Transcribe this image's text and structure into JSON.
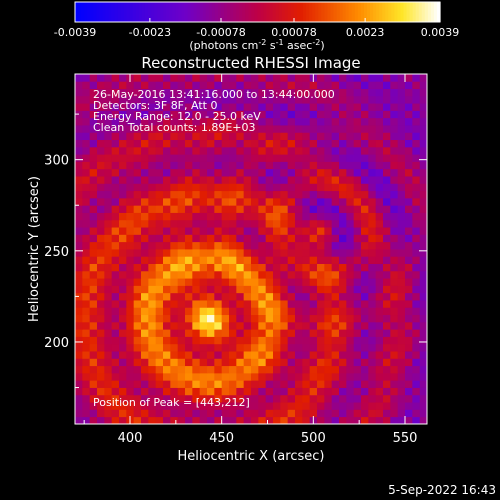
{
  "chart_data": {
    "type": "heatmap",
    "title": "Reconstructed RHESSI Image",
    "xlabel": "Heliocentric X (arcsec)",
    "ylabel": "Heliocentric Y (arcsec)",
    "xlim": [
      370,
      562
    ],
    "ylim": [
      155,
      347
    ],
    "x_ticks": [
      400,
      450,
      500,
      550
    ],
    "y_ticks": [
      200,
      250,
      300
    ],
    "colorbar": {
      "min": -0.0039,
      "max": 0.0039,
      "tick_values": [
        -0.0039,
        -0.0023,
        -0.00078,
        0.00078,
        0.0023,
        0.0039
      ],
      "tick_labels": [
        "-0.0039",
        "-0.0023",
        "-0.00078",
        "0.00078",
        "0.0023",
        "0.0039"
      ],
      "unit_label": "(photons cm",
      "unit_sup1": "-2",
      "unit_mid1": " s",
      "unit_sup2": "-1",
      "unit_mid2": " asec",
      "unit_sup3": "-2",
      "unit_end": ")"
    },
    "annotations": {
      "time_range": "26-May-2016 13:41:16.000 to 13:44:00.000",
      "detectors": "Detectors: 3F 8F, Att 0",
      "energy": "Energy Range: 12.0 - 25.0 keV",
      "clean": "Clean    Total counts: 1.89E+03",
      "peak": "Position of Peak = [443,212]"
    },
    "peak": [
      443,
      212
    ],
    "grid": false
  },
  "footer": {
    "date": "5-Sep-2022 16:43"
  }
}
